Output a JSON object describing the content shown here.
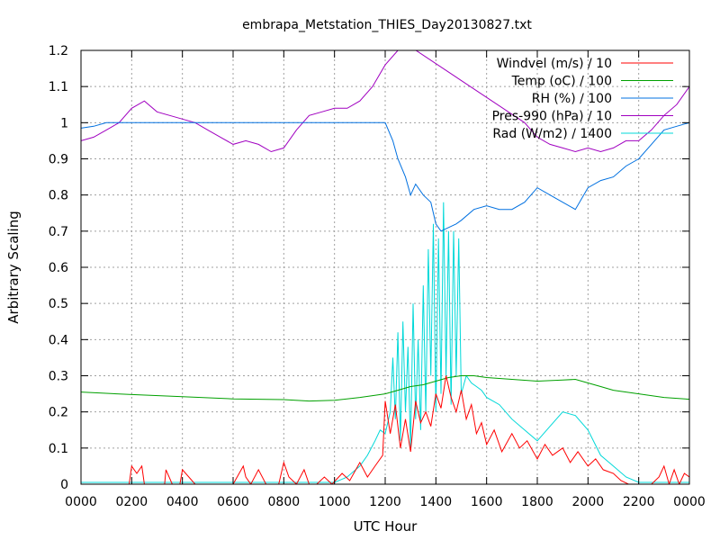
{
  "chart_data": {
    "type": "line",
    "title": "embrapa_Metstation_THIES_Day20130827.txt",
    "xlabel": "UTC Hour",
    "ylabel": "Arbitrary Scaling",
    "xlim": [
      0,
      24
    ],
    "ylim": [
      0,
      1.2
    ],
    "grid": true,
    "legend_position": "top-right",
    "x_ticks": [
      {
        "v": 0,
        "label": "0000"
      },
      {
        "v": 2,
        "label": "0200"
      },
      {
        "v": 4,
        "label": "0400"
      },
      {
        "v": 6,
        "label": "0600"
      },
      {
        "v": 8,
        "label": "0800"
      },
      {
        "v": 10,
        "label": "1000"
      },
      {
        "v": 12,
        "label": "1200"
      },
      {
        "v": 14,
        "label": "1400"
      },
      {
        "v": 16,
        "label": "1600"
      },
      {
        "v": 18,
        "label": "1800"
      },
      {
        "v": 20,
        "label": "2000"
      },
      {
        "v": 22,
        "label": "2200"
      },
      {
        "v": 24,
        "label": "0000"
      }
    ],
    "y_ticks": [
      {
        "v": 0,
        "label": "0"
      },
      {
        "v": 0.1,
        "label": "0.1"
      },
      {
        "v": 0.2,
        "label": "0.2"
      },
      {
        "v": 0.3,
        "label": "0.3"
      },
      {
        "v": 0.4,
        "label": "0.4"
      },
      {
        "v": 0.5,
        "label": "0.5"
      },
      {
        "v": 0.6,
        "label": "0.6"
      },
      {
        "v": 0.7,
        "label": "0.7"
      },
      {
        "v": 0.8,
        "label": "0.8"
      },
      {
        "v": 0.9,
        "label": "0.9"
      },
      {
        "v": 1.0,
        "label": "1"
      },
      {
        "v": 1.1,
        "label": "1.1"
      },
      {
        "v": 1.2,
        "label": "1.2"
      }
    ],
    "series": [
      {
        "name": "Windvel (m/s) / 10",
        "color": "#ff0000",
        "x": [
          0,
          1.9,
          2.0,
          2.2,
          2.4,
          2.5,
          3.0,
          3.3,
          3.35,
          3.6,
          3.9,
          4.0,
          4.5,
          5.2,
          5.5,
          6.0,
          6.4,
          6.5,
          6.7,
          7.0,
          7.3,
          7.6,
          7.8,
          8.0,
          8.2,
          8.5,
          8.8,
          9.0,
          9.3,
          9.6,
          9.9,
          10.3,
          10.6,
          11.0,
          11.3,
          11.6,
          11.9,
          12.0,
          12.2,
          12.4,
          12.6,
          12.8,
          13.0,
          13.2,
          13.4,
          13.6,
          13.8,
          14.0,
          14.2,
          14.4,
          14.6,
          14.8,
          15.0,
          15.2,
          15.4,
          15.6,
          15.8,
          16.0,
          16.3,
          16.6,
          17.0,
          17.3,
          17.6,
          18.0,
          18.3,
          18.6,
          19.0,
          19.3,
          19.6,
          20.0,
          20.3,
          20.6,
          21.0,
          21.3,
          21.6,
          21.9,
          22.2,
          22.5,
          22.8,
          23.0,
          23.2,
          23.4,
          23.6,
          23.8,
          24.0
        ],
        "values": [
          0,
          0,
          0.05,
          0.03,
          0.05,
          0,
          0,
          0,
          0.04,
          0,
          0,
          0.04,
          0,
          0,
          0,
          0,
          0.05,
          0.02,
          0,
          0.04,
          0,
          0,
          0,
          0.06,
          0.02,
          0,
          0.04,
          0,
          0,
          0.02,
          0,
          0.03,
          0.01,
          0.06,
          0.02,
          0.05,
          0.08,
          0.23,
          0.14,
          0.22,
          0.1,
          0.18,
          0.09,
          0.23,
          0.17,
          0.2,
          0.16,
          0.25,
          0.21,
          0.3,
          0.24,
          0.2,
          0.26,
          0.18,
          0.22,
          0.14,
          0.17,
          0.11,
          0.15,
          0.09,
          0.14,
          0.1,
          0.12,
          0.07,
          0.11,
          0.08,
          0.1,
          0.06,
          0.09,
          0.05,
          0.07,
          0.04,
          0.03,
          0.01,
          0,
          0,
          0,
          0,
          0.02,
          0.05,
          0,
          0.04,
          0,
          0.03,
          0.02
        ]
      },
      {
        "name": "Temp (oC) / 100",
        "color": "#00a000",
        "x": [
          0,
          2,
          4,
          6,
          8,
          9,
          10,
          11,
          12,
          12.5,
          13,
          13.5,
          14,
          14.5,
          15,
          15.5,
          16,
          17,
          18,
          19,
          19.5,
          20,
          20.5,
          21,
          22,
          23,
          24
        ],
        "values": [
          0.255,
          0.248,
          0.242,
          0.236,
          0.234,
          0.23,
          0.232,
          0.24,
          0.25,
          0.26,
          0.27,
          0.275,
          0.285,
          0.295,
          0.3,
          0.3,
          0.295,
          0.29,
          0.285,
          0.288,
          0.29,
          0.28,
          0.27,
          0.26,
          0.25,
          0.24,
          0.235
        ]
      },
      {
        "name": "RH (%) / 100",
        "color": "#0070e0",
        "x": [
          0,
          0.5,
          1,
          2,
          4,
          6,
          8,
          10,
          12,
          12.3,
          12.5,
          12.8,
          13,
          13.2,
          13.5,
          13.8,
          14,
          14.2,
          14.5,
          14.8,
          15,
          15.5,
          16,
          16.5,
          17,
          17.5,
          18,
          18.5,
          19,
          19.5,
          20,
          20.5,
          21,
          21.5,
          22,
          22.5,
          23,
          23.5,
          24
        ],
        "values": [
          0.985,
          0.99,
          1.0,
          1.0,
          1.0,
          1.0,
          1.0,
          1.0,
          1.0,
          0.95,
          0.9,
          0.85,
          0.8,
          0.83,
          0.8,
          0.78,
          0.72,
          0.7,
          0.71,
          0.72,
          0.73,
          0.76,
          0.77,
          0.76,
          0.76,
          0.78,
          0.82,
          0.8,
          0.78,
          0.76,
          0.82,
          0.84,
          0.85,
          0.88,
          0.9,
          0.94,
          0.98,
          0.99,
          1.0
        ]
      },
      {
        "name": "Pres-990 (hPa) / 10",
        "color": "#a000c0",
        "x": [
          0,
          0.5,
          1,
          1.5,
          2,
          2.5,
          3,
          3.5,
          4,
          4.5,
          5,
          5.5,
          6,
          6.5,
          7,
          7.5,
          8,
          8.5,
          9,
          9.5,
          10,
          10.5,
          11,
          11.5,
          12,
          12.5,
          13,
          17.5,
          18,
          18.5,
          19,
          19.5,
          20,
          20.5,
          21,
          21.5,
          22,
          22.5,
          23,
          23.5,
          24
        ],
        "values": [
          0.95,
          0.96,
          0.98,
          1.0,
          1.04,
          1.06,
          1.03,
          1.02,
          1.01,
          1.0,
          0.98,
          0.96,
          0.94,
          0.95,
          0.94,
          0.92,
          0.93,
          0.98,
          1.02,
          1.03,
          1.04,
          1.04,
          1.06,
          1.1,
          1.16,
          1.2,
          1.21,
          1.0,
          0.96,
          0.94,
          0.93,
          0.92,
          0.93,
          0.92,
          0.93,
          0.95,
          0.95,
          0.98,
          1.02,
          1.05,
          1.1
        ]
      },
      {
        "name": "Rad (W/m2) / 1400",
        "color": "#00d8d8",
        "x": [
          0,
          10,
          10.5,
          11,
          11.3,
          11.6,
          11.8,
          12.0,
          12.2,
          12.3,
          12.4,
          12.5,
          12.6,
          12.7,
          12.8,
          12.9,
          13.0,
          13.1,
          13.2,
          13.3,
          13.4,
          13.5,
          13.6,
          13.7,
          13.8,
          13.9,
          14.0,
          14.1,
          14.2,
          14.3,
          14.4,
          14.5,
          14.6,
          14.7,
          14.8,
          14.9,
          15.0,
          15.2,
          15.4,
          15.6,
          15.8,
          16.0,
          16.5,
          17.0,
          17.5,
          18.0,
          18.5,
          19.0,
          19.5,
          20.0,
          20.5,
          21.0,
          21.5,
          22.0,
          24.0
        ],
        "values": [
          0.005,
          0.005,
          0.02,
          0.05,
          0.08,
          0.12,
          0.15,
          0.14,
          0.2,
          0.35,
          0.18,
          0.42,
          0.12,
          0.45,
          0.2,
          0.38,
          0.1,
          0.5,
          0.18,
          0.4,
          0.15,
          0.55,
          0.2,
          0.65,
          0.3,
          0.72,
          0.2,
          0.68,
          0.25,
          0.78,
          0.3,
          0.7,
          0.22,
          0.7,
          0.3,
          0.68,
          0.25,
          0.3,
          0.28,
          0.27,
          0.26,
          0.24,
          0.22,
          0.18,
          0.15,
          0.12,
          0.16,
          0.2,
          0.19,
          0.15,
          0.08,
          0.05,
          0.02,
          0.005,
          0.005
        ]
      }
    ]
  }
}
